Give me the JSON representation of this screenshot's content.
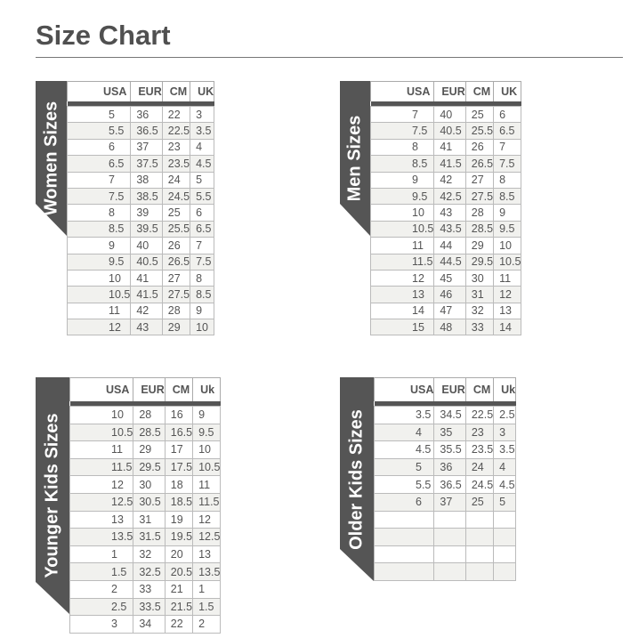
{
  "title": "Size Chart",
  "colors": {
    "band": "#555555",
    "alt_row": "#f1f1ee"
  },
  "tables": [
    {
      "label": "Women Sizes",
      "headers": [
        "USA",
        "EUR",
        "CM",
        "UK"
      ],
      "rows": [
        [
          "5",
          "36",
          "22",
          "3"
        ],
        [
          "5.5",
          "36.5",
          "22.5",
          "3.5"
        ],
        [
          "6",
          "37",
          "23",
          "4"
        ],
        [
          "6.5",
          "37.5",
          "23.5",
          "4.5"
        ],
        [
          "7",
          "38",
          "24",
          "5"
        ],
        [
          "7.5",
          "38.5",
          "24.5",
          "5.5"
        ],
        [
          "8",
          "39",
          "25",
          "6"
        ],
        [
          "8.5",
          "39.5",
          "25.5",
          "6.5"
        ],
        [
          "9",
          "40",
          "26",
          "7"
        ],
        [
          "9.5",
          "40.5",
          "26.5",
          "7.5"
        ],
        [
          "10",
          "41",
          "27",
          "8"
        ],
        [
          "10.5",
          "41.5",
          "27.5",
          "8.5"
        ],
        [
          "11",
          "42",
          "28",
          "9"
        ],
        [
          "12",
          "43",
          "29",
          "10"
        ]
      ]
    },
    {
      "label": "Men Sizes",
      "headers": [
        "USA",
        "EUR",
        "CM",
        "UK"
      ],
      "rows": [
        [
          "7",
          "40",
          "25",
          "6"
        ],
        [
          "7.5",
          "40.5",
          "25.5",
          "6.5"
        ],
        [
          "8",
          "41",
          "26",
          "7"
        ],
        [
          "8.5",
          "41.5",
          "26.5",
          "7.5"
        ],
        [
          "9",
          "42",
          "27",
          "8"
        ],
        [
          "9.5",
          "42.5",
          "27.5",
          "8.5"
        ],
        [
          "10",
          "43",
          "28",
          "9"
        ],
        [
          "10.5",
          "43.5",
          "28.5",
          "9.5"
        ],
        [
          "11",
          "44",
          "29",
          "10"
        ],
        [
          "11.5",
          "44.5",
          "29.5",
          "10.5"
        ],
        [
          "12",
          "45",
          "30",
          "11"
        ],
        [
          "13",
          "46",
          "31",
          "12"
        ],
        [
          "14",
          "47",
          "32",
          "13"
        ],
        [
          "15",
          "48",
          "33",
          "14"
        ]
      ]
    },
    {
      "label": "Younger Kids Sizes",
      "headers": [
        "USA",
        "EUR",
        "CM",
        "Uk"
      ],
      "rows": [
        [
          "10",
          "28",
          "16",
          "9"
        ],
        [
          "10.5",
          "28.5",
          "16.5",
          "9.5"
        ],
        [
          "11",
          "29",
          "17",
          "10"
        ],
        [
          "11.5",
          "29.5",
          "17.5",
          "10.5"
        ],
        [
          "12",
          "30",
          "18",
          "11"
        ],
        [
          "12.5",
          "30.5",
          "18.5",
          "11.5"
        ],
        [
          "13",
          "31",
          "19",
          "12"
        ],
        [
          "13.5",
          "31.5",
          "19.5",
          "12.5"
        ],
        [
          "1",
          "32",
          "20",
          "13"
        ],
        [
          "1.5",
          "32.5",
          "20.5",
          "13.5"
        ],
        [
          "2",
          "33",
          "21",
          "1"
        ],
        [
          "2.5",
          "33.5",
          "21.5",
          "1.5"
        ],
        [
          "3",
          "34",
          "22",
          "2"
        ]
      ]
    },
    {
      "label": "Older Kids Sizes",
      "headers": [
        "USA",
        "EUR",
        "CM",
        "Uk"
      ],
      "rows": [
        [
          "3.5",
          "34.5",
          "22.5",
          "2.5"
        ],
        [
          "4",
          "35",
          "23",
          "3"
        ],
        [
          "4.5",
          "35.5",
          "23.5",
          "3.5"
        ],
        [
          "5",
          "36",
          "24",
          "4"
        ],
        [
          "5.5",
          "36.5",
          "24.5",
          "4.5"
        ],
        [
          "6",
          "37",
          "25",
          "5"
        ],
        [
          "",
          "",
          "",
          ""
        ],
        [
          "",
          "",
          "",
          ""
        ],
        [
          "",
          "",
          "",
          ""
        ],
        [
          "",
          "",
          "",
          ""
        ]
      ]
    }
  ]
}
